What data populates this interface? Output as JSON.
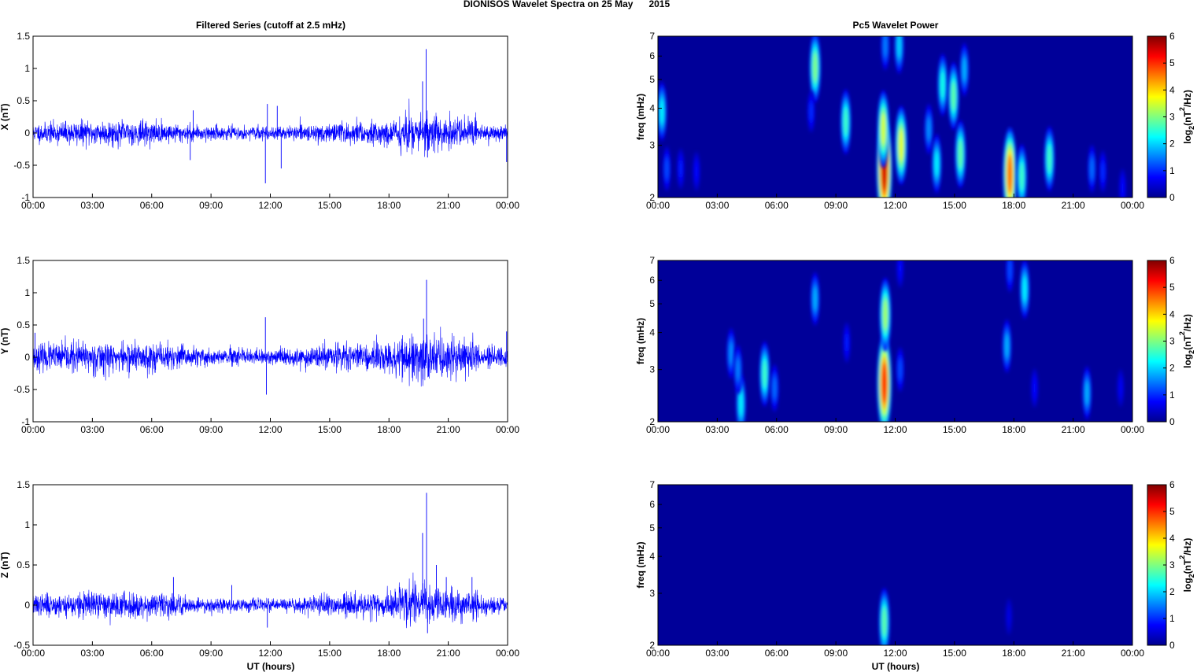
{
  "figure": {
    "title": "DIONISOS Wavelet Spectra on 25 May      2015",
    "left_title": "Filtered Series (cutoff at 2.5 mHz)",
    "right_title": "Pc5 Wavelet Power",
    "xlabel": "UT (hours)"
  },
  "time_ticks": [
    "00:00",
    "03:00",
    "06:00",
    "09:00",
    "12:00",
    "15:00",
    "18:00",
    "21:00",
    "00:00"
  ],
  "freq_ticks": [
    2,
    3,
    4,
    5,
    6,
    7
  ],
  "colorbar": {
    "label_main": "log",
    "label_sub": "2",
    "label_rest": "(nT",
    "label_sup": "2",
    "label_end": "/Hz)",
    "range": [
      0,
      6
    ],
    "ticks": [
      0,
      1,
      2,
      3,
      4,
      5,
      6
    ],
    "colormap": "jet"
  },
  "chart_data": [
    {
      "type": "line",
      "component": "X",
      "ylabel": "X (nT)",
      "ylim": [
        -1,
        1.5
      ],
      "yticks": [
        -1,
        -0.5,
        0,
        0.5,
        1,
        1.5
      ],
      "xlim_hours": [
        0,
        24
      ],
      "noise_amplitude": 0.07,
      "series_color": "#0000ff",
      "features": [
        {
          "t_hours": 7.95,
          "value": -0.42
        },
        {
          "t_hours": 8.1,
          "value": 0.35
        },
        {
          "t_hours": 11.75,
          "value": -0.78
        },
        {
          "t_hours": 11.85,
          "value": 0.45
        },
        {
          "t_hours": 12.55,
          "value": -0.55
        },
        {
          "t_hours": 12.35,
          "value": 0.42
        },
        {
          "t_hours": 19.7,
          "value": 0.8
        },
        {
          "t_hours": 19.88,
          "value": 1.3
        },
        {
          "t_hours": 19.95,
          "value": -0.38
        },
        {
          "t_hours": 23.95,
          "value": -0.45
        }
      ]
    },
    {
      "type": "line",
      "component": "Y",
      "ylabel": "Y (nT)",
      "ylim": [
        -1,
        1.5
      ],
      "yticks": [
        -1,
        -0.5,
        0,
        0.5,
        1,
        1.5
      ],
      "xlim_hours": [
        0,
        24
      ],
      "noise_amplitude": 0.09,
      "series_color": "#0000ff",
      "features": [
        {
          "t_hours": 0.1,
          "value": 0.38
        },
        {
          "t_hours": 11.75,
          "value": 0.62
        },
        {
          "t_hours": 11.8,
          "value": -0.58
        },
        {
          "t_hours": 19.75,
          "value": 0.6
        },
        {
          "t_hours": 19.9,
          "value": 1.2
        },
        {
          "t_hours": 20.0,
          "value": -0.3
        },
        {
          "t_hours": 23.95,
          "value": 0.4
        }
      ]
    },
    {
      "type": "line",
      "component": "Z",
      "ylabel": "Z (nT)",
      "ylim": [
        -0.5,
        1.5
      ],
      "yticks": [
        -0.5,
        0,
        0.5,
        1,
        1.5
      ],
      "xlim_hours": [
        0,
        24
      ],
      "noise_amplitude": 0.06,
      "series_color": "#0000ff",
      "features": [
        {
          "t_hours": 7.1,
          "value": 0.35
        },
        {
          "t_hours": 10.05,
          "value": 0.25
        },
        {
          "t_hours": 11.85,
          "value": -0.28
        },
        {
          "t_hours": 19.7,
          "value": 0.9
        },
        {
          "t_hours": 19.9,
          "value": 1.4
        },
        {
          "t_hours": 19.95,
          "value": -0.35
        },
        {
          "t_hours": 20.4,
          "value": 0.5
        },
        {
          "t_hours": 20.9,
          "value": 0.35
        },
        {
          "t_hours": 22.2,
          "value": 0.35
        }
      ]
    },
    {
      "type": "heatmap",
      "component": "X",
      "ylabel": "freq (mHz)",
      "ylim_mhz": [
        2,
        7
      ],
      "yscale": "log",
      "xlim_hours": [
        0,
        24
      ],
      "blobs": [
        {
          "t_hours": 0.2,
          "f_mhz": 3.9,
          "power": 2.2
        },
        {
          "t_hours": 0.45,
          "f_mhz": 2.5,
          "power": 1.2
        },
        {
          "t_hours": 1.15,
          "f_mhz": 2.5,
          "power": 0.9
        },
        {
          "t_hours": 1.95,
          "f_mhz": 2.45,
          "power": 0.8
        },
        {
          "t_hours": 7.95,
          "f_mhz": 5.5,
          "power": 3.0
        },
        {
          "t_hours": 7.75,
          "f_mhz": 3.9,
          "power": 1.0
        },
        {
          "t_hours": 9.5,
          "f_mhz": 3.6,
          "power": 2.6
        },
        {
          "t_hours": 11.45,
          "f_mhz": 2.5,
          "power": 5.5
        },
        {
          "t_hours": 11.4,
          "f_mhz": 3.4,
          "power": 3.5
        },
        {
          "t_hours": 11.5,
          "f_mhz": 6.5,
          "power": 1.5
        },
        {
          "t_hours": 12.3,
          "f_mhz": 3.0,
          "power": 3.6
        },
        {
          "t_hours": 12.2,
          "f_mhz": 6.5,
          "power": 2.0
        },
        {
          "t_hours": 13.7,
          "f_mhz": 3.4,
          "power": 1.6
        },
        {
          "t_hours": 14.1,
          "f_mhz": 2.6,
          "power": 2.2
        },
        {
          "t_hours": 14.4,
          "f_mhz": 4.8,
          "power": 2.4
        },
        {
          "t_hours": 14.95,
          "f_mhz": 4.4,
          "power": 2.8
        },
        {
          "t_hours": 15.3,
          "f_mhz": 2.8,
          "power": 2.8
        },
        {
          "t_hours": 15.5,
          "f_mhz": 5.4,
          "power": 1.8
        },
        {
          "t_hours": 17.8,
          "f_mhz": 2.4,
          "power": 4.6
        },
        {
          "t_hours": 18.4,
          "f_mhz": 2.35,
          "power": 2.6
        },
        {
          "t_hours": 19.8,
          "f_mhz": 2.7,
          "power": 2.6
        },
        {
          "t_hours": 21.95,
          "f_mhz": 2.5,
          "power": 1.4
        },
        {
          "t_hours": 22.5,
          "f_mhz": 2.45,
          "power": 1.0
        },
        {
          "t_hours": 23.5,
          "f_mhz": 2.15,
          "power": 0.8
        }
      ]
    },
    {
      "type": "heatmap",
      "component": "Y",
      "ylabel": "freq (mHz)",
      "ylim_mhz": [
        2,
        7
      ],
      "yscale": "log",
      "xlim_hours": [
        0,
        24
      ],
      "blobs": [
        {
          "t_hours": 3.7,
          "f_mhz": 3.4,
          "power": 1.6
        },
        {
          "t_hours": 4.2,
          "f_mhz": 2.3,
          "power": 2.2
        },
        {
          "t_hours": 4.05,
          "f_mhz": 3.0,
          "power": 1.5
        },
        {
          "t_hours": 5.4,
          "f_mhz": 2.9,
          "power": 2.6
        },
        {
          "t_hours": 5.9,
          "f_mhz": 2.6,
          "power": 1.4
        },
        {
          "t_hours": 7.95,
          "f_mhz": 5.2,
          "power": 1.8
        },
        {
          "t_hours": 9.55,
          "f_mhz": 3.7,
          "power": 0.9
        },
        {
          "t_hours": 11.45,
          "f_mhz": 2.7,
          "power": 5.0
        },
        {
          "t_hours": 11.5,
          "f_mhz": 4.6,
          "power": 3.2
        },
        {
          "t_hours": 12.25,
          "f_mhz": 3.0,
          "power": 1.2
        },
        {
          "t_hours": 12.25,
          "f_mhz": 6.6,
          "power": 0.8
        },
        {
          "t_hours": 17.65,
          "f_mhz": 3.6,
          "power": 1.8
        },
        {
          "t_hours": 17.8,
          "f_mhz": 6.5,
          "power": 1.2
        },
        {
          "t_hours": 18.55,
          "f_mhz": 5.6,
          "power": 2.2
        },
        {
          "t_hours": 19.05,
          "f_mhz": 2.6,
          "power": 0.8
        },
        {
          "t_hours": 21.7,
          "f_mhz": 2.5,
          "power": 1.8
        },
        {
          "t_hours": 23.4,
          "f_mhz": 2.6,
          "power": 0.7
        }
      ]
    },
    {
      "type": "heatmap",
      "component": "Z",
      "ylabel": "freq (mHz)",
      "ylim_mhz": [
        2,
        7
      ],
      "yscale": "log",
      "xlim_hours": [
        0,
        24
      ],
      "blobs": [
        {
          "t_hours": 11.45,
          "f_mhz": 2.4,
          "power": 2.8
        },
        {
          "t_hours": 17.75,
          "f_mhz": 2.5,
          "power": 0.6
        }
      ]
    }
  ]
}
